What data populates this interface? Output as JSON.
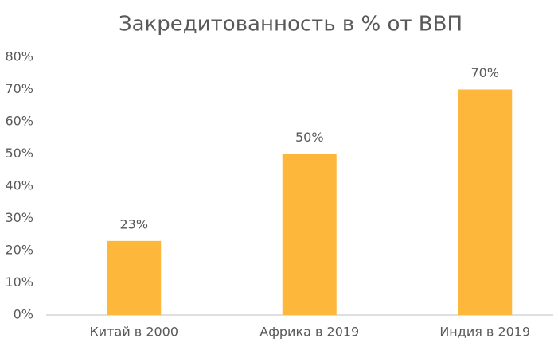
{
  "chart_data": {
    "type": "bar",
    "title": "Закредитованность в % от ВВП",
    "categories": [
      "Китай в 2000",
      "Африка в 2019",
      "Индия в 2019"
    ],
    "values": [
      23,
      50,
      70
    ],
    "value_labels": [
      "23%",
      "50%",
      "70%"
    ],
    "color": "#fdb73a",
    "ylim": [
      0,
      80
    ],
    "yticks": [
      {
        "value": 0,
        "label": "0%"
      },
      {
        "value": 10,
        "label": "10%"
      },
      {
        "value": 20,
        "label": "20%"
      },
      {
        "value": 30,
        "label": "30%"
      },
      {
        "value": 40,
        "label": "40%"
      },
      {
        "value": 50,
        "label": "50%"
      },
      {
        "value": 60,
        "label": "60%"
      },
      {
        "value": 70,
        "label": "70%"
      },
      {
        "value": 80,
        "label": "80%"
      }
    ],
    "grid": false
  }
}
